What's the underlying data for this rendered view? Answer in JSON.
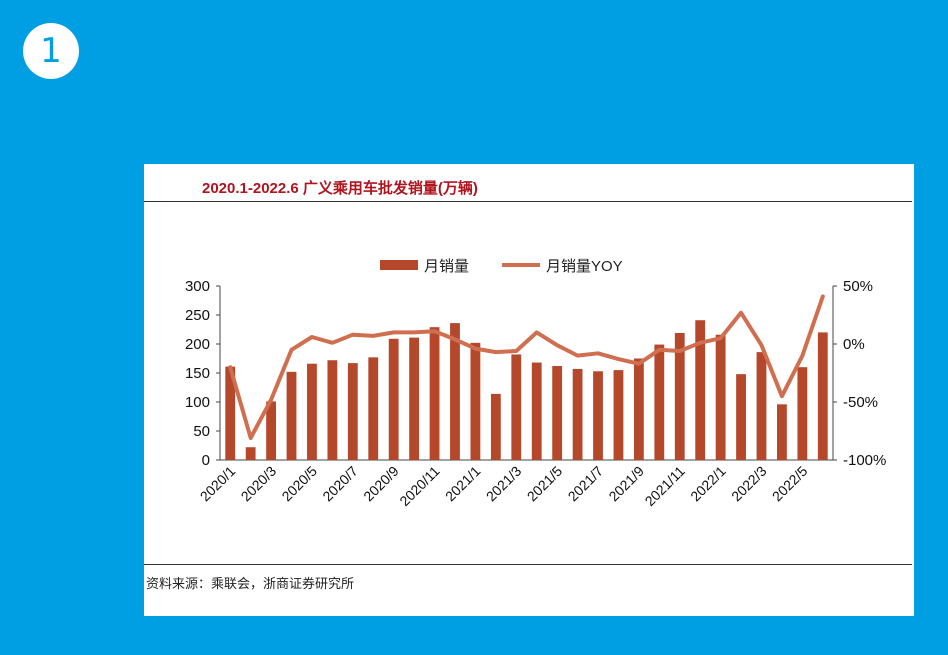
{
  "badge": "1",
  "source": "资料来源：乘联会，浙商证券研究所",
  "colors": {
    "background": "#009fe3",
    "bar": "#b5472a",
    "line": "#cf6f4f",
    "title": "#b0141f"
  },
  "chart_data": {
    "type": "bar",
    "title": "2020.1-2022.6 广义乘用车批发销量(万辆)",
    "categories": [
      "2020/1",
      "2020/2",
      "2020/3",
      "2020/4",
      "2020/5",
      "2020/6",
      "2020/7",
      "2020/8",
      "2020/9",
      "2020/10",
      "2020/11",
      "2020/12",
      "2021/1",
      "2021/2",
      "2021/3",
      "2021/4",
      "2021/5",
      "2021/6",
      "2021/7",
      "2021/8",
      "2021/9",
      "2021/10",
      "2021/11",
      "2021/12",
      "2022/1",
      "2022/2",
      "2022/3",
      "2022/4",
      "2022/5",
      "2022/6"
    ],
    "x_tick_labels": [
      "2020/1",
      "2020/3",
      "2020/5",
      "2020/7",
      "2020/9",
      "2020/11",
      "2021/1",
      "2021/3",
      "2021/5",
      "2021/7",
      "2021/9",
      "2021/11",
      "2022/1",
      "2022/3",
      "2022/5"
    ],
    "series": [
      {
        "name": "月销量",
        "type": "bar",
        "axis": "left",
        "values": [
          161,
          22,
          101,
          152,
          166,
          172,
          167,
          177,
          209,
          211,
          229,
          236,
          202,
          114,
          182,
          168,
          162,
          157,
          153,
          155,
          175,
          199,
          219,
          241,
          216,
          148,
          186,
          96,
          160,
          220
        ]
      },
      {
        "name": "月销量YOY",
        "type": "line",
        "axis": "right",
        "values": [
          -0.2,
          -0.81,
          -0.48,
          -0.05,
          0.06,
          0.01,
          0.08,
          0.07,
          0.1,
          0.1,
          0.11,
          0.04,
          -0.04,
          -0.07,
          -0.06,
          0.1,
          -0.01,
          -0.1,
          -0.08,
          -0.13,
          -0.17,
          -0.05,
          -0.06,
          0.01,
          0.05,
          0.27,
          -0.01,
          -0.45,
          -0.1,
          0.41
        ]
      }
    ],
    "y_left": {
      "ylim": [
        0,
        300
      ],
      "ticks": [
        "0",
        "50",
        "100",
        "150",
        "200",
        "250",
        "300"
      ]
    },
    "y_right": {
      "ylim": [
        -1.0,
        0.5
      ],
      "ticks": [
        "-100%",
        "-50%",
        "0%",
        "50%"
      ]
    },
    "legend": {
      "position": "top-center"
    },
    "grid": false
  }
}
